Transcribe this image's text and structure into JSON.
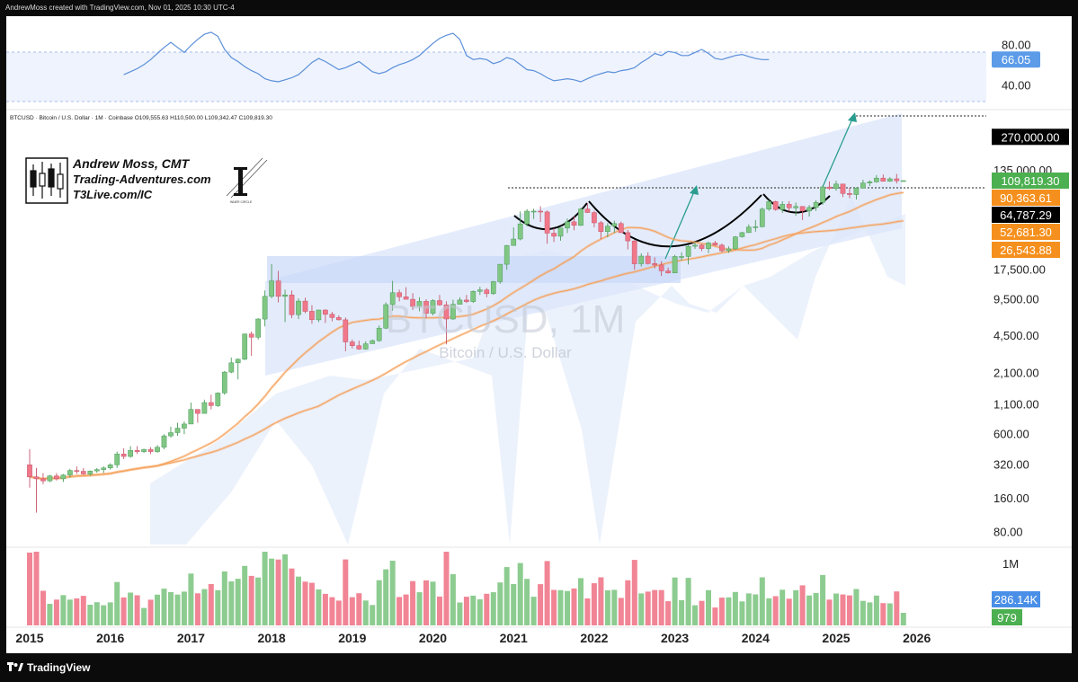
{
  "header": {
    "credit": "AndrewMoss created with TradingView.com, Nov 01, 2025 10:30 UTC-4"
  },
  "footer": {
    "brand": "TradingView"
  },
  "symbol_line": "BTCUSD · Bitcoin / U.S. Dollar · 1M · Coinbase  O109,555.63  H110,500.00  L109,342.47  C109,819.30",
  "watermark": {
    "symbol": "BTCUSD, 1M",
    "name": "Bitcoin / U.S. Dollar"
  },
  "brand_box": {
    "author": "Andrew Moss, CMT",
    "site1": "Trading-Adventures.com",
    "site2": "T3Live.com/IC",
    "logo_caption": "INNER CIRCLE"
  },
  "colors": {
    "up": "#81c784",
    "down": "#f0788a",
    "rsi": "#5b8fd9",
    "ma": "#f5a05a",
    "band": "#dbe6fb",
    "black": "#000000"
  },
  "chart_data": {
    "type": "candlestick",
    "title": "BTCUSD · Bitcoin / U.S. Dollar · 1M · Coinbase",
    "scale": "log",
    "ylim": [
      60,
      400000
    ],
    "x_ticks": [
      "2015",
      "2016",
      "2017",
      "2018",
      "2019",
      "2020",
      "2021",
      "2022",
      "2023",
      "2024",
      "2025",
      "2026"
    ],
    "price_ticks": [
      {
        "v": 135000,
        "label": "135,000.00"
      },
      {
        "v": 17500,
        "label": "17,500.00"
      },
      {
        "v": 9500,
        "label": "9,500.00"
      },
      {
        "v": 4500,
        "label": "4,500.00"
      },
      {
        "v": 2100,
        "label": "2,100.00"
      },
      {
        "v": 1100,
        "label": "1,100.00"
      },
      {
        "v": 600,
        "label": "600.00"
      },
      {
        "v": 320,
        "label": "320.00"
      },
      {
        "v": 160,
        "label": "160.00"
      },
      {
        "v": 80,
        "label": "80.00"
      }
    ],
    "price_badges": [
      {
        "v": 270000,
        "label": "270,000.00",
        "color": "#000000"
      },
      {
        "v": 109819.3,
        "label": "109,819.30",
        "color": "#4caf50"
      },
      {
        "v": 90363.61,
        "label": "90,363.61",
        "color": "#f5901e"
      },
      {
        "v": 64787.29,
        "label": "64,787.29",
        "color": "#000000"
      },
      {
        "v": 52681.3,
        "label": "52,681.30",
        "color": "#f5901e"
      },
      {
        "v": 26543.88,
        "label": "26,543.88",
        "color": "#f5901e"
      }
    ],
    "rsi": {
      "ticks": [
        {
          "v": 80,
          "label": "80.00"
        },
        {
          "v": 40,
          "label": "40.00"
        }
      ],
      "current": {
        "v": 66.05,
        "label": "66.05"
      },
      "values": [
        51,
        54,
        57,
        61,
        66,
        72,
        78,
        83,
        78,
        73,
        80,
        86,
        91,
        93,
        89,
        76,
        68,
        64,
        59,
        55,
        52,
        47,
        45,
        44,
        46,
        48,
        51,
        57,
        63,
        67,
        64,
        60,
        56,
        58,
        61,
        64,
        59,
        54,
        52,
        54,
        58,
        61,
        63,
        66,
        70,
        76,
        82,
        87,
        90,
        92,
        86,
        70,
        66,
        67,
        66,
        62,
        64,
        68,
        66,
        61,
        56,
        55,
        52,
        48,
        45,
        46,
        47,
        46,
        44,
        47,
        50,
        52,
        54,
        53,
        55,
        56,
        58,
        63,
        67,
        72,
        70,
        74,
        73,
        70,
        70,
        73,
        76,
        72,
        67,
        66,
        68,
        70,
        71,
        69,
        67,
        66,
        66
      ]
    },
    "volume": {
      "ticks": [
        {
          "v": 1000000,
          "label": "1M"
        }
      ],
      "current": [
        {
          "label": "286.14K",
          "color": "#4a8fe7"
        },
        {
          "label": "979",
          "color": "#4caf50"
        }
      ]
    },
    "annotations": {
      "target": 270000,
      "neckline": 64787.29,
      "patterns": [
        "cup-and-handle",
        "cup-and-handle"
      ]
    },
    "candles_ohlc": [
      [
        320,
        440,
        200,
        250
      ],
      [
        250,
        300,
        120,
        240
      ],
      [
        240,
        270,
        215,
        230
      ],
      [
        230,
        260,
        225,
        255
      ],
      [
        255,
        270,
        232,
        240
      ],
      [
        240,
        265,
        225,
        260
      ],
      [
        260,
        295,
        245,
        285
      ],
      [
        285,
        310,
        265,
        280
      ],
      [
        280,
        300,
        260,
        265
      ],
      [
        265,
        285,
        255,
        282
      ],
      [
        282,
        300,
        272,
        290
      ],
      [
        290,
        310,
        270,
        300
      ],
      [
        300,
        330,
        290,
        320
      ],
      [
        320,
        420,
        300,
        400
      ],
      [
        400,
        450,
        360,
        380
      ],
      [
        380,
        470,
        370,
        430
      ],
      [
        430,
        470,
        400,
        420
      ],
      [
        420,
        445,
        410,
        440
      ],
      [
        440,
        460,
        400,
        420
      ],
      [
        420,
        480,
        410,
        460
      ],
      [
        460,
        600,
        440,
        580
      ],
      [
        580,
        700,
        560,
        620
      ],
      [
        620,
        760,
        580,
        680
      ],
      [
        680,
        780,
        600,
        740
      ],
      [
        740,
        1150,
        740,
        1000
      ],
      [
        1000,
        1000,
        760,
        920
      ],
      [
        920,
        1220,
        920,
        1150
      ],
      [
        1150,
        1350,
        1000,
        1080
      ],
      [
        1080,
        1420,
        1050,
        1400
      ],
      [
        1400,
        2200,
        1350,
        2150
      ],
      [
        2150,
        2900,
        2100,
        2600
      ],
      [
        2600,
        2850,
        1850,
        2800
      ],
      [
        2800,
        4750,
        2750,
        4700
      ],
      [
        4700,
        4950,
        3000,
        4400
      ],
      [
        4400,
        6500,
        4200,
        6400
      ],
      [
        6400,
        11500,
        5500,
        10200
      ],
      [
        10200,
        19800,
        9800,
        14000
      ],
      [
        14000,
        17200,
        9000,
        10200
      ],
      [
        10200,
        11700,
        6000,
        10500
      ],
      [
        10500,
        11500,
        6500,
        7000
      ],
      [
        7000,
        9800,
        6400,
        9250
      ],
      [
        9250,
        9900,
        7200,
        7500
      ],
      [
        7500,
        8500,
        5800,
        6300
      ],
      [
        6300,
        7750,
        6000,
        7700
      ],
      [
        7700,
        7800,
        5900,
        7050
      ],
      [
        7050,
        7400,
        6100,
        6600
      ],
      [
        6600,
        6900,
        6200,
        6300
      ],
      [
        6300,
        6600,
        3300,
        4000
      ],
      [
        4000,
        4200,
        3500,
        3700
      ],
      [
        3700,
        4100,
        3400,
        3450
      ],
      [
        3450,
        4050,
        3400,
        3850
      ],
      [
        3850,
        4200,
        3900,
        4100
      ],
      [
        4100,
        5600,
        4000,
        5300
      ],
      [
        5300,
        9000,
        5200,
        8600
      ],
      [
        8600,
        14000,
        7600,
        11000
      ],
      [
        11000,
        11700,
        9200,
        10100
      ],
      [
        10100,
        12300,
        9800,
        9600
      ],
      [
        9600,
        10900,
        7700,
        8300
      ],
      [
        8300,
        10000,
        7500,
        9200
      ],
      [
        9200,
        9600,
        6500,
        7200
      ],
      [
        7200,
        9600,
        6900,
        9350
      ],
      [
        9350,
        10500,
        8400,
        8550
      ],
      [
        8550,
        9200,
        3800,
        6400
      ],
      [
        6400,
        9500,
        6300,
        8650
      ],
      [
        8650,
        10000,
        8700,
        9450
      ],
      [
        9450,
        10500,
        8900,
        9150
      ],
      [
        9150,
        11500,
        8900,
        11300
      ],
      [
        11300,
        12400,
        10500,
        11650
      ],
      [
        11650,
        12100,
        10000,
        10780
      ],
      [
        10780,
        14000,
        10500,
        13800
      ],
      [
        13800,
        19000,
        13200,
        19700
      ],
      [
        19700,
        29300,
        17600,
        29000
      ],
      [
        29000,
        42000,
        28800,
        33100
      ],
      [
        33100,
        58300,
        32200,
        45100
      ],
      [
        45100,
        61200,
        43000,
        58700
      ],
      [
        58700,
        61700,
        50000,
        58700
      ],
      [
        58700,
        64800,
        47000,
        57700
      ],
      [
        57700,
        59500,
        30000,
        37300
      ],
      [
        37300,
        41300,
        31100,
        35000
      ],
      [
        35000,
        40500,
        32000,
        41500
      ],
      [
        41500,
        50500,
        37300,
        47100
      ],
      [
        47100,
        52900,
        39600,
        43800
      ],
      [
        43800,
        62900,
        43300,
        61300
      ],
      [
        61300,
        69000,
        56500,
        57000
      ],
      [
        57000,
        59200,
        42000,
        46200
      ],
      [
        46200,
        47900,
        33000,
        38500
      ],
      [
        38500,
        45800,
        34300,
        43200
      ],
      [
        43200,
        48200,
        37500,
        45500
      ],
      [
        45500,
        47400,
        37700,
        37700
      ],
      [
        37700,
        39900,
        26700,
        31800
      ],
      [
        31800,
        32400,
        17600,
        19900
      ],
      [
        19900,
        24700,
        18800,
        23300
      ],
      [
        23300,
        25200,
        19600,
        20000
      ],
      [
        20000,
        22700,
        18100,
        19400
      ],
      [
        19400,
        21000,
        15500,
        17200
      ],
      [
        17200,
        18400,
        16300,
        16500
      ],
      [
        16500,
        23900,
        16500,
        23100
      ],
      [
        23100,
        25200,
        21300,
        23100
      ],
      [
        23100,
        29200,
        19600,
        28500
      ],
      [
        28500,
        31000,
        27000,
        29200
      ],
      [
        29200,
        29900,
        25800,
        27200
      ],
      [
        27200,
        31400,
        24800,
        30500
      ],
      [
        30500,
        31800,
        28800,
        29200
      ],
      [
        29200,
        30200,
        25300,
        26000
      ],
      [
        26000,
        28500,
        24900,
        27000
      ],
      [
        27000,
        35200,
        26600,
        34600
      ],
      [
        34600,
        38400,
        34100,
        37700
      ],
      [
        37700,
        44700,
        37600,
        42300
      ],
      [
        42300,
        48900,
        38500,
        42600
      ],
      [
        42600,
        63000,
        42000,
        61200
      ],
      [
        61200,
        73800,
        59000,
        71300
      ],
      [
        71300,
        72700,
        59200,
        60600
      ],
      [
        60600,
        71900,
        56500,
        67500
      ],
      [
        67500,
        72000,
        58500,
        62800
      ],
      [
        62800,
        70000,
        53500,
        64600
      ],
      [
        64600,
        65100,
        49000,
        58900
      ],
      [
        58900,
        66500,
        52500,
        63300
      ],
      [
        63300,
        73600,
        58900,
        70300
      ],
      [
        70300,
        99800,
        66800,
        96400
      ],
      [
        96400,
        108000,
        90700,
        93400
      ],
      [
        93400,
        109600,
        89200,
        102400
      ],
      [
        102400,
        102500,
        78200,
        84400
      ],
      [
        84400,
        95000,
        76600,
        82500
      ],
      [
        82500,
        95700,
        74500,
        94200
      ],
      [
        94200,
        111900,
        93400,
        104600
      ],
      [
        104600,
        110500,
        98200,
        107100
      ],
      [
        107100,
        123100,
        105100,
        115700
      ],
      [
        115700,
        124500,
        108000,
        108200
      ],
      [
        108200,
        117900,
        107300,
        114000
      ],
      [
        114000,
        126200,
        103500,
        109500
      ],
      [
        109500,
        110500,
        109300,
        109800
      ]
    ]
  }
}
